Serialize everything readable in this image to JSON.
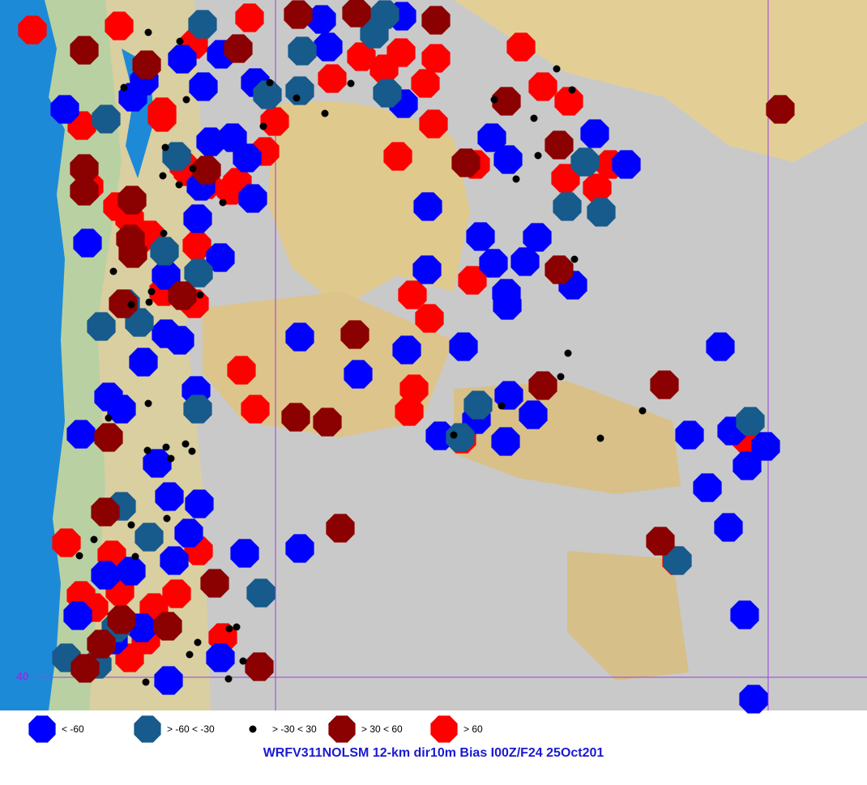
{
  "map": {
    "latitude_label": "40",
    "legend": [
      {
        "label": "< -60",
        "color": "#0000ff"
      },
      {
        "label": "> -60 < -30",
        "color": "#175a8c"
      },
      {
        "label": "> -30 < 30",
        "color": "#000000"
      },
      {
        "label": "> 30 < 60",
        "color": "#8b0000"
      },
      {
        "label": "> 60",
        "color": "#ff0000"
      }
    ],
    "title": "WRFV311NOLSM 12-km dir10m Bias I00Z/F24 25Oct201"
  }
}
